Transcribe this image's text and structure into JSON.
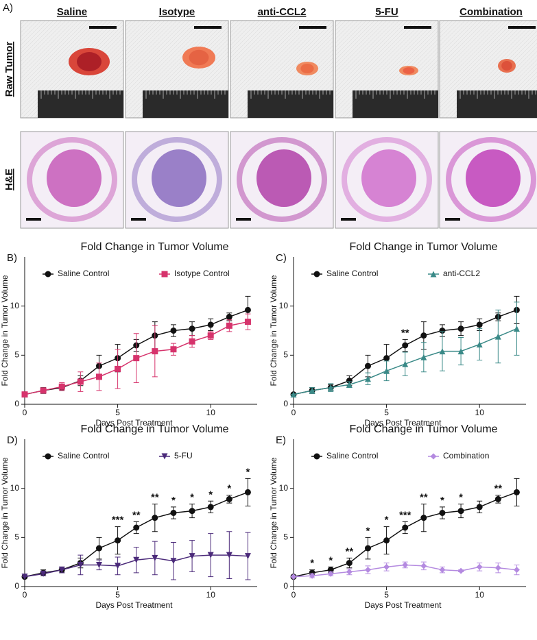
{
  "panel_a": {
    "panel_label": "A)",
    "columns": [
      "Saline",
      "Isotype",
      "anti-CCL2",
      "5-FU",
      "Combination"
    ],
    "rows": [
      "Raw Tumor",
      "H&E"
    ]
  },
  "chart_data": [
    {
      "type": "line",
      "panel_label": "B)",
      "title": "Fold Change in Tumor Volume",
      "x_label": "Days Post Treatment",
      "y_label": "Fold Change in Tumor Volume",
      "x": [
        0,
        1,
        2,
        3,
        4,
        5,
        6,
        7,
        8,
        9,
        10,
        11,
        12
      ],
      "xlim": [
        0,
        12.5
      ],
      "xticks": [
        0,
        5,
        10
      ],
      "ylim": [
        0,
        15
      ],
      "yticks": [
        0,
        5,
        10
      ],
      "series": [
        {
          "name": "Saline Control",
          "color": "#111111",
          "marker": "circle",
          "values": [
            1,
            1.4,
            1.7,
            2.4,
            3.9,
            4.7,
            6.0,
            7.0,
            7.5,
            7.7,
            8.1,
            8.9,
            9.6
          ],
          "errors": [
            0,
            0.3,
            0.3,
            0.5,
            1.1,
            1.4,
            0.6,
            1.4,
            0.6,
            0.7,
            0.6,
            0.4,
            1.4
          ]
        },
        {
          "name": "Isotype Control",
          "color": "#d6336c",
          "marker": "square",
          "values": [
            1,
            1.4,
            1.8,
            2.3,
            2.8,
            3.6,
            4.7,
            5.4,
            5.6,
            6.4,
            7.0,
            8.0,
            8.4
          ],
          "errors": [
            0,
            0.2,
            0.4,
            1.0,
            1.4,
            2.0,
            2.5,
            2.6,
            0.6,
            0.6,
            0.4,
            0.6,
            0.8
          ]
        }
      ],
      "annotations": []
    },
    {
      "type": "line",
      "panel_label": "C)",
      "title": "Fold Change in Tumor Volume",
      "x_label": "Days Post Treatment",
      "y_label": "Fold Change in Tumor Volume",
      "x": [
        0,
        1,
        2,
        3,
        4,
        5,
        6,
        7,
        8,
        9,
        10,
        11,
        12
      ],
      "xlim": [
        0,
        12.5
      ],
      "xticks": [
        0,
        5,
        10
      ],
      "ylim": [
        0,
        15
      ],
      "yticks": [
        0,
        5,
        10
      ],
      "series": [
        {
          "name": "Saline Control",
          "color": "#111111",
          "marker": "circle",
          "values": [
            1,
            1.4,
            1.7,
            2.4,
            3.9,
            4.7,
            6.0,
            7.0,
            7.5,
            7.7,
            8.1,
            8.9,
            9.6
          ],
          "errors": [
            0,
            0.3,
            0.3,
            0.5,
            1.1,
            1.4,
            0.6,
            1.4,
            0.6,
            0.7,
            0.6,
            0.4,
            1.4
          ]
        },
        {
          "name": "anti-CCL2",
          "color": "#3a8a88",
          "marker": "triangle",
          "values": [
            1,
            1.4,
            1.7,
            2.0,
            2.6,
            3.4,
            4.1,
            4.8,
            5.4,
            5.4,
            6.1,
            6.9,
            7.7
          ],
          "errors": [
            0,
            0.3,
            0.4,
            0.3,
            0.6,
            1.0,
            1.2,
            1.5,
            2.0,
            1.4,
            1.6,
            2.7,
            2.7
          ]
        }
      ],
      "annotations": [
        {
          "x": 6,
          "text": "**"
        }
      ]
    },
    {
      "type": "line",
      "panel_label": "D)",
      "title": "Fold Change in Tumor Volume",
      "x_label": "Days Post Treatment",
      "y_label": "Fold Change in Tumor Volume",
      "x": [
        0,
        1,
        2,
        3,
        4,
        5,
        6,
        7,
        8,
        9,
        10,
        11,
        12
      ],
      "xlim": [
        0,
        12.5
      ],
      "xticks": [
        0,
        5,
        10
      ],
      "ylim": [
        0,
        15
      ],
      "yticks": [
        0,
        5,
        10
      ],
      "series": [
        {
          "name": "Saline Control",
          "color": "#111111",
          "marker": "circle",
          "values": [
            1,
            1.4,
            1.7,
            2.4,
            3.9,
            4.7,
            6.0,
            7.0,
            7.5,
            7.7,
            8.1,
            8.9,
            9.6
          ],
          "errors": [
            0,
            0.3,
            0.3,
            0.5,
            1.1,
            1.4,
            0.6,
            1.4,
            0.6,
            0.7,
            0.6,
            0.4,
            1.4
          ]
        },
        {
          "name": "5-FU",
          "color": "#4b2a7a",
          "marker": "triangle-down",
          "values": [
            1,
            1.3,
            1.7,
            2.2,
            2.2,
            2.1,
            2.7,
            2.9,
            2.6,
            3.1,
            3.2,
            3.2,
            3.1
          ],
          "errors": [
            0,
            0.2,
            0.3,
            1.0,
            0.5,
            0.9,
            1.3,
            1.7,
            1.9,
            1.6,
            2.2,
            2.4,
            2.4
          ]
        }
      ],
      "annotations": [
        {
          "x": 5,
          "text": "***"
        },
        {
          "x": 6,
          "text": "**"
        },
        {
          "x": 7,
          "text": "**"
        },
        {
          "x": 8,
          "text": "*"
        },
        {
          "x": 9,
          "text": "*"
        },
        {
          "x": 10,
          "text": "*"
        },
        {
          "x": 11,
          "text": "*"
        },
        {
          "x": 12,
          "text": "*"
        }
      ]
    },
    {
      "type": "line",
      "panel_label": "E)",
      "title": "Fold Change in Tumor Volume",
      "x_label": "Days Post Treatment",
      "y_label": "Fold Change in Tumor Volume",
      "x": [
        0,
        1,
        2,
        3,
        4,
        5,
        6,
        7,
        8,
        9,
        10,
        11,
        12
      ],
      "xlim": [
        0,
        12.5
      ],
      "xticks": [
        0,
        5,
        10
      ],
      "ylim": [
        0,
        15
      ],
      "yticks": [
        0,
        5,
        10
      ],
      "series": [
        {
          "name": "Saline Control",
          "color": "#111111",
          "marker": "circle",
          "values": [
            1,
            1.4,
            1.7,
            2.4,
            3.9,
            4.7,
            6.0,
            7.0,
            7.5,
            7.7,
            8.1,
            8.9,
            9.6
          ],
          "errors": [
            0,
            0.3,
            0.3,
            0.5,
            1.1,
            1.4,
            0.6,
            1.4,
            0.6,
            0.7,
            0.6,
            0.4,
            1.4
          ]
        },
        {
          "name": "Combination",
          "color": "#b48ae0",
          "marker": "diamond",
          "values": [
            1,
            1.1,
            1.3,
            1.5,
            1.7,
            2.0,
            2.2,
            2.1,
            1.7,
            1.6,
            2.0,
            1.9,
            1.7
          ],
          "errors": [
            0,
            0.2,
            0.2,
            0.3,
            0.4,
            0.4,
            0.3,
            0.4,
            0.3,
            0.1,
            0.4,
            0.5,
            0.5
          ]
        }
      ],
      "annotations": [
        {
          "x": 1,
          "text": "*"
        },
        {
          "x": 2,
          "text": "*"
        },
        {
          "x": 3,
          "text": "**"
        },
        {
          "x": 4,
          "text": "*"
        },
        {
          "x": 5,
          "text": "*"
        },
        {
          "x": 6,
          "text": "***"
        },
        {
          "x": 7,
          "text": "**"
        },
        {
          "x": 8,
          "text": "*"
        },
        {
          "x": 9,
          "text": "*"
        },
        {
          "x": 11,
          "text": "**"
        }
      ]
    }
  ]
}
